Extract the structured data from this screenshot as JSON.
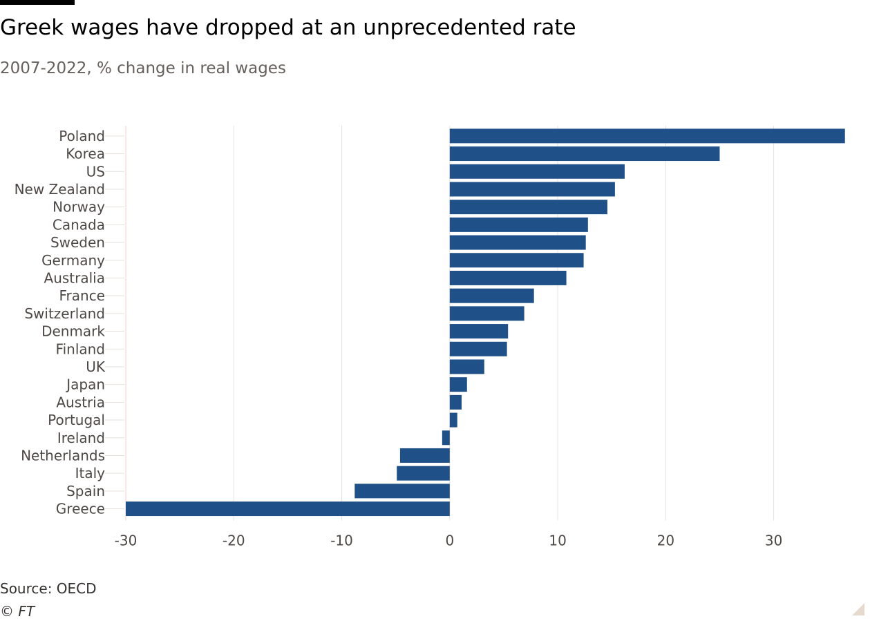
{
  "title": "Greek wages have dropped at an unprecedented rate",
  "subtitle": "2007-2022, % change in real wages",
  "source": "Source: OECD",
  "copyright": "© FT",
  "colors": {
    "bar": "#1f5188",
    "grid": "#e6e1dd",
    "tick_text": "#4d4845",
    "label_text": "#4d4845",
    "zero_line": "#f2cfc8"
  },
  "chart_data": {
    "type": "bar",
    "orientation": "horizontal",
    "title": "Greek wages have dropped at an unprecedented rate",
    "subtitle": "2007-2022, % change in real wages",
    "xlabel": "",
    "ylabel": "",
    "xlim": [
      -30,
      37
    ],
    "xticks": [
      -30,
      -20,
      -10,
      0,
      10,
      20,
      30
    ],
    "grid": true,
    "legend": "none",
    "categories": [
      "Poland",
      "Korea",
      "US",
      "New Zealand",
      "Norway",
      "Canada",
      "Sweden",
      "Germany",
      "Australia",
      "France",
      "Switzerland",
      "Denmark",
      "Finland",
      "UK",
      "Japan",
      "Austria",
      "Portugal",
      "Ireland",
      "Netherlands",
      "Italy",
      "Spain",
      "Greece"
    ],
    "values": [
      36.6,
      25.0,
      16.2,
      15.3,
      14.6,
      12.8,
      12.6,
      12.4,
      10.8,
      7.8,
      6.9,
      5.4,
      5.3,
      3.2,
      1.6,
      1.1,
      0.7,
      -0.7,
      -4.6,
      -4.9,
      -8.8,
      -30.0
    ]
  }
}
